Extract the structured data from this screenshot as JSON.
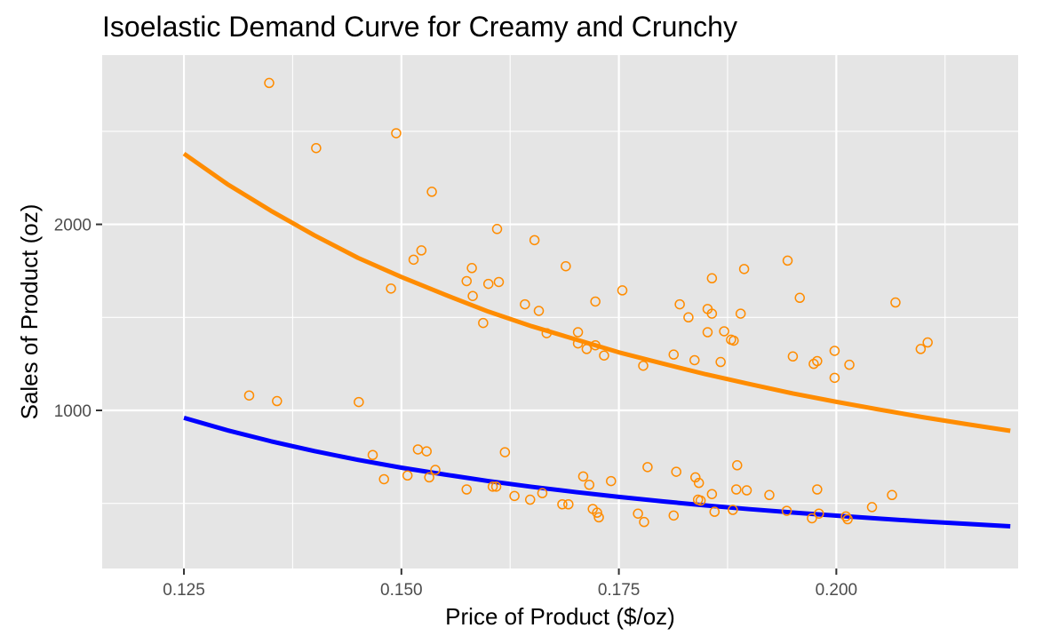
{
  "chart_data": {
    "type": "scatter",
    "title": "Isoelastic Demand Curve for Creamy and Crunchy",
    "xlabel": "Price of Product ($/oz)",
    "ylabel": "Sales of Product (oz)",
    "xlim": [
      0.1156,
      0.2209
    ],
    "ylim": [
      150,
      2910
    ],
    "xticks": [
      0.125,
      0.15,
      0.175,
      0.2
    ],
    "xtick_labels": [
      "0.125",
      "0.150",
      "0.175",
      "0.200"
    ],
    "yticks": [
      1000,
      2000
    ],
    "ytick_labels": [
      "1000",
      "2000"
    ],
    "grid": true,
    "legend": "none",
    "colors": {
      "points": "#FF8C00",
      "curve_top": "#FF8C00",
      "curve_bottom": "#0000FF",
      "panel": "#E5E5E5",
      "grid": "#FFFFFF"
    },
    "series": [
      {
        "kind": "points",
        "points": [
          [
            0.1348,
            2760
          ],
          [
            0.1402,
            2410
          ],
          [
            0.1494,
            2490
          ],
          [
            0.1535,
            2175
          ],
          [
            0.161,
            1975
          ],
          [
            0.1653,
            1915
          ],
          [
            0.1523,
            1860
          ],
          [
            0.1514,
            1810
          ],
          [
            0.1581,
            1765
          ],
          [
            0.1488,
            1655
          ],
          [
            0.1575,
            1695
          ],
          [
            0.16,
            1680
          ],
          [
            0.1612,
            1690
          ],
          [
            0.1582,
            1615
          ],
          [
            0.1642,
            1570
          ],
          [
            0.1658,
            1535
          ],
          [
            0.1594,
            1470
          ],
          [
            0.1667,
            1415
          ],
          [
            0.1689,
            1775
          ],
          [
            0.1703,
            1420
          ],
          [
            0.1703,
            1360
          ],
          [
            0.1713,
            1330
          ],
          [
            0.1723,
            1350
          ],
          [
            0.1733,
            1295
          ],
          [
            0.1723,
            1585
          ],
          [
            0.1754,
            1645
          ],
          [
            0.1778,
            1240
          ],
          [
            0.1813,
            1300
          ],
          [
            0.182,
            1570
          ],
          [
            0.183,
            1500
          ],
          [
            0.1837,
            1270
          ],
          [
            0.1852,
            1545
          ],
          [
            0.1852,
            1420
          ],
          [
            0.1857,
            1710
          ],
          [
            0.1857,
            1520
          ],
          [
            0.1867,
            1260
          ],
          [
            0.1871,
            1425
          ],
          [
            0.1879,
            1380
          ],
          [
            0.1882,
            1375
          ],
          [
            0.189,
            1520
          ],
          [
            0.1894,
            1760
          ],
          [
            0.1944,
            1805
          ],
          [
            0.195,
            1290
          ],
          [
            0.1958,
            1605
          ],
          [
            0.1974,
            1250
          ],
          [
            0.1978,
            1265
          ],
          [
            0.1998,
            1320
          ],
          [
            0.1998,
            1175
          ],
          [
            0.2015,
            1245
          ],
          [
            0.2068,
            1580
          ],
          [
            0.2097,
            1330
          ],
          [
            0.2105,
            1365
          ],
          [
            0.1325,
            1080
          ],
          [
            0.1357,
            1050
          ],
          [
            0.1451,
            1045
          ],
          [
            0.1467,
            760
          ],
          [
            0.148,
            630
          ],
          [
            0.1507,
            650
          ],
          [
            0.1519,
            790
          ],
          [
            0.1529,
            780
          ],
          [
            0.1532,
            640
          ],
          [
            0.1539,
            680
          ],
          [
            0.1575,
            575
          ],
          [
            0.1605,
            590
          ],
          [
            0.1609,
            590
          ],
          [
            0.1619,
            775
          ],
          [
            0.163,
            540
          ],
          [
            0.1648,
            520
          ],
          [
            0.1662,
            555
          ],
          [
            0.1685,
            495
          ],
          [
            0.1692,
            495
          ],
          [
            0.1709,
            645
          ],
          [
            0.1716,
            600
          ],
          [
            0.172,
            470
          ],
          [
            0.1725,
            450
          ],
          [
            0.1727,
            425
          ],
          [
            0.1741,
            620
          ],
          [
            0.1772,
            445
          ],
          [
            0.1783,
            695
          ],
          [
            0.1779,
            400
          ],
          [
            0.1813,
            435
          ],
          [
            0.1816,
            670
          ],
          [
            0.1838,
            640
          ],
          [
            0.1841,
            520
          ],
          [
            0.1842,
            610
          ],
          [
            0.1844,
            515
          ],
          [
            0.1857,
            550
          ],
          [
            0.186,
            455
          ],
          [
            0.1881,
            465
          ],
          [
            0.1885,
            575
          ],
          [
            0.1886,
            705
          ],
          [
            0.1897,
            570
          ],
          [
            0.1923,
            545
          ],
          [
            0.1943,
            460
          ],
          [
            0.1972,
            420
          ],
          [
            0.1978,
            575
          ],
          [
            0.198,
            445
          ],
          [
            0.2011,
            430
          ],
          [
            0.2013,
            415
          ],
          [
            0.2041,
            480
          ],
          [
            0.2064,
            545
          ]
        ]
      },
      {
        "kind": "line",
        "x": [
          0.125,
          0.13,
          0.135,
          0.14,
          0.145,
          0.15,
          0.155,
          0.16,
          0.165,
          0.17,
          0.175,
          0.18,
          0.185,
          0.19,
          0.195,
          0.2,
          0.205,
          0.21,
          0.215,
          0.22
        ],
        "y": [
          2380,
          2216,
          2073,
          1941,
          1820,
          1717,
          1622,
          1531,
          1452,
          1382,
          1312,
          1252,
          1194,
          1142,
          1091,
          1046,
          1004,
          963,
          926,
          890
        ]
      },
      {
        "kind": "line",
        "x": [
          0.125,
          0.13,
          0.135,
          0.14,
          0.145,
          0.15,
          0.155,
          0.16,
          0.165,
          0.17,
          0.175,
          0.18,
          0.185,
          0.19,
          0.195,
          0.2,
          0.205,
          0.21,
          0.215,
          0.22
        ],
        "y": [
          960,
          893,
          834,
          781,
          734,
          692,
          655,
          620,
          589,
          561,
          535,
          511,
          489,
          469,
          451,
          434,
          418,
          403,
          390,
          377
        ]
      }
    ]
  }
}
